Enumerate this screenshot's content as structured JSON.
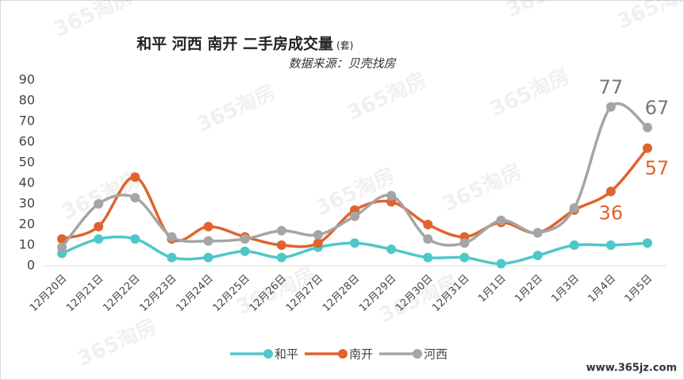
{
  "chart_data": {
    "type": "line",
    "title": "和平 河西 南开 二手房成交量",
    "title_unit": "(套)",
    "subtitle": "数据来源：贝壳找房",
    "watermark": "365淘房",
    "site": "www.365jz.com",
    "categories": [
      "12月20日",
      "12月21日",
      "12月22日",
      "12月23日",
      "12月24日",
      "12月25日",
      "12月26日",
      "12月27日",
      "12月28日",
      "12月29日",
      "12月30日",
      "12月31日",
      "1月1日",
      "1月2日",
      "1月3日",
      "1月4日",
      "1月5日"
    ],
    "series": [
      {
        "name": "和平",
        "color": "#4fc7c9",
        "values": [
          6,
          13,
          13,
          4,
          4,
          7,
          4,
          9,
          11,
          8,
          4,
          4,
          1,
          5,
          10,
          10,
          11
        ]
      },
      {
        "name": "南开",
        "color": "#e0632e",
        "values": [
          13,
          19,
          43,
          13,
          19,
          14,
          10,
          11,
          27,
          31,
          20,
          14,
          21,
          16,
          27,
          36,
          57
        ],
        "value_labels": [
          null,
          null,
          null,
          null,
          null,
          null,
          null,
          null,
          null,
          null,
          null,
          null,
          null,
          null,
          null,
          "36",
          "57"
        ]
      },
      {
        "name": "河西",
        "color": "#a5a5a5",
        "values": [
          9,
          30,
          33,
          14,
          12,
          13,
          17,
          15,
          24,
          34,
          13,
          11,
          22,
          16,
          28,
          77,
          67
        ],
        "value_labels": [
          null,
          null,
          null,
          null,
          null,
          null,
          null,
          null,
          null,
          null,
          null,
          null,
          null,
          null,
          null,
          "77",
          "67"
        ]
      }
    ],
    "ylim": [
      0,
      90
    ],
    "yticks": [
      0,
      10,
      20,
      30,
      40,
      50,
      60,
      70,
      80,
      90
    ],
    "grid": false,
    "legend": "bottom"
  }
}
